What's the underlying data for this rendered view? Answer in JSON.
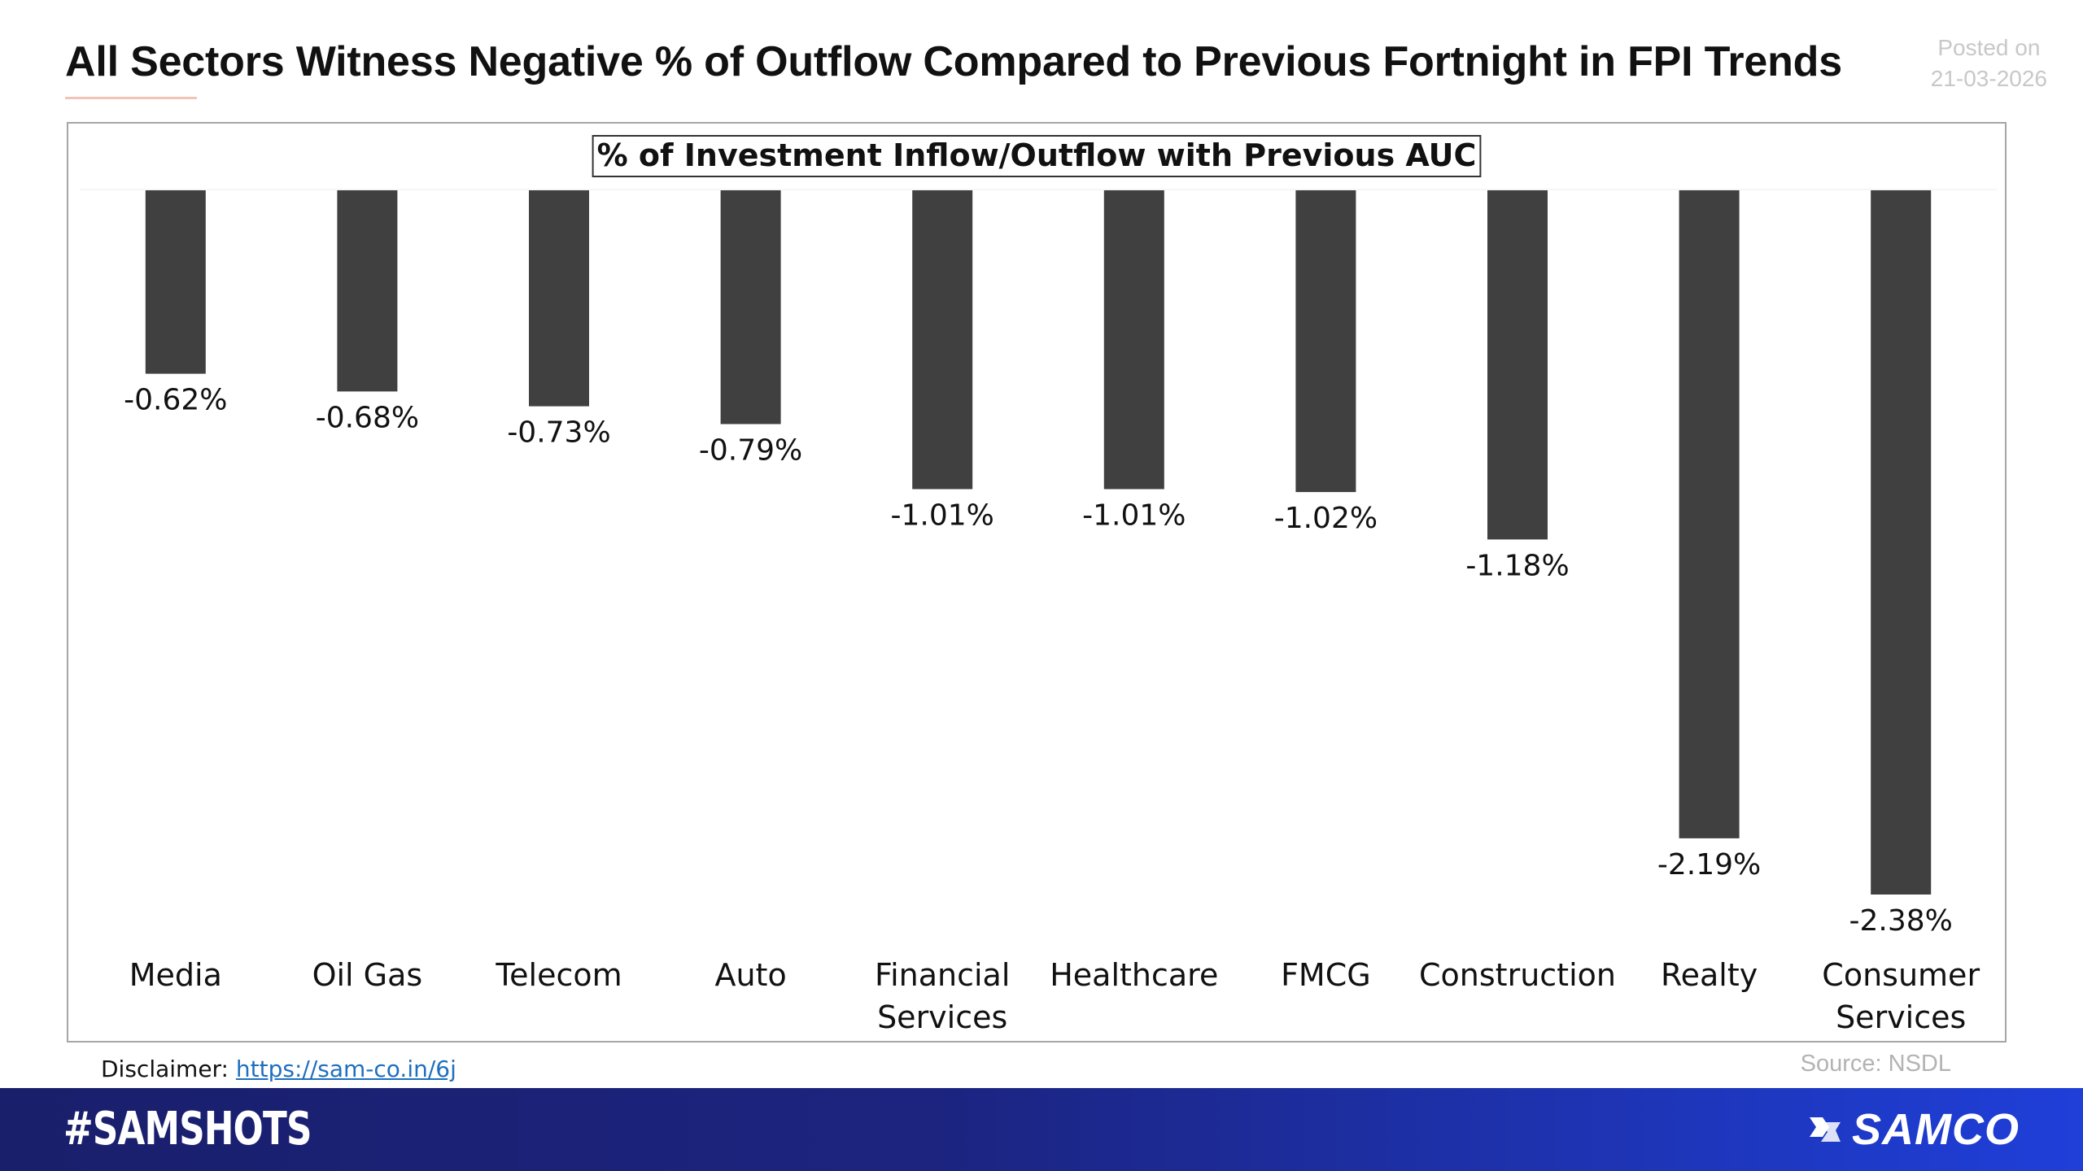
{
  "header": {
    "title": "All Sectors Witness Negative % of Outflow Compared to Previous Fortnight in FPI Trends",
    "posted_label": "Posted on",
    "posted_date": "21-03-2026"
  },
  "chart_data": {
    "type": "bar",
    "title": "% of Investment Inflow/Outflow with Previous AUC",
    "categories": [
      [
        "Media"
      ],
      [
        "Oil Gas"
      ],
      [
        "Telecom"
      ],
      [
        "Auto"
      ],
      [
        "Financial",
        "Services"
      ],
      [
        "Healthcare"
      ],
      [
        "FMCG"
      ],
      [
        "Construction"
      ],
      [
        "Realty"
      ],
      [
        "Consumer",
        "Services"
      ]
    ],
    "values": [
      -0.62,
      -0.68,
      -0.73,
      -0.79,
      -1.01,
      -1.01,
      -1.02,
      -1.18,
      -2.19,
      -2.38
    ],
    "value_labels": [
      "-0.62%",
      "-0.68%",
      "-0.73%",
      "-0.79%",
      "-1.01%",
      "-1.01%",
      "-1.02%",
      "-1.18%",
      "-2.19%",
      "-2.38%"
    ],
    "ylim": [
      -2.38,
      0
    ],
    "bar_color": "#404040",
    "grid": false,
    "legend": "none"
  },
  "footer": {
    "disclaimer_label": "Disclaimer:",
    "disclaimer_link": "https://sam-co.in/6j",
    "source": "Source: NSDL",
    "hashtag": "#SAMSHOTS",
    "brand": "SAMCO"
  }
}
